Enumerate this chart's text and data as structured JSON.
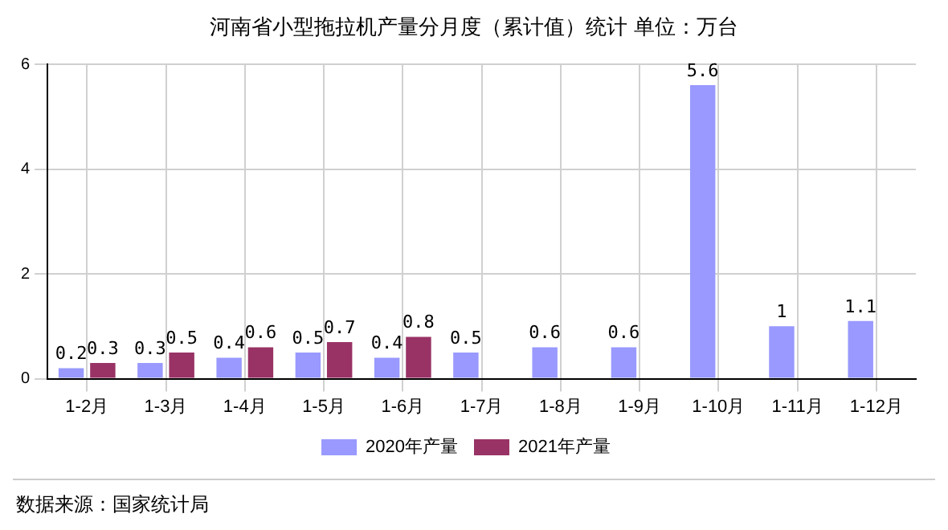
{
  "chart_data": {
    "type": "bar",
    "title": "河南省小型拖拉机产量分月度（累计值）统计  单位：万台",
    "categories": [
      "1-2月",
      "1-3月",
      "1-4月",
      "1-5月",
      "1-6月",
      "1-7月",
      "1-8月",
      "1-9月",
      "1-10月",
      "1-11月",
      "1-12月"
    ],
    "series": [
      {
        "name": "2020年产量",
        "color": "#9999ff",
        "values": [
          0.2,
          0.3,
          0.4,
          0.5,
          0.4,
          0.5,
          0.6,
          0.6,
          5.6,
          1,
          1.1
        ]
      },
      {
        "name": "2021年产量",
        "color": "#993366",
        "values": [
          0.3,
          0.5,
          0.6,
          0.7,
          0.8,
          null,
          null,
          null,
          null,
          null,
          null
        ]
      }
    ],
    "ylim": [
      0,
      6
    ],
    "yticks": [
      0,
      2,
      4,
      6
    ],
    "grid": true,
    "legend": "bottom",
    "data_labels": true,
    "annotations": [
      "数据来源：国家统计局"
    ]
  }
}
